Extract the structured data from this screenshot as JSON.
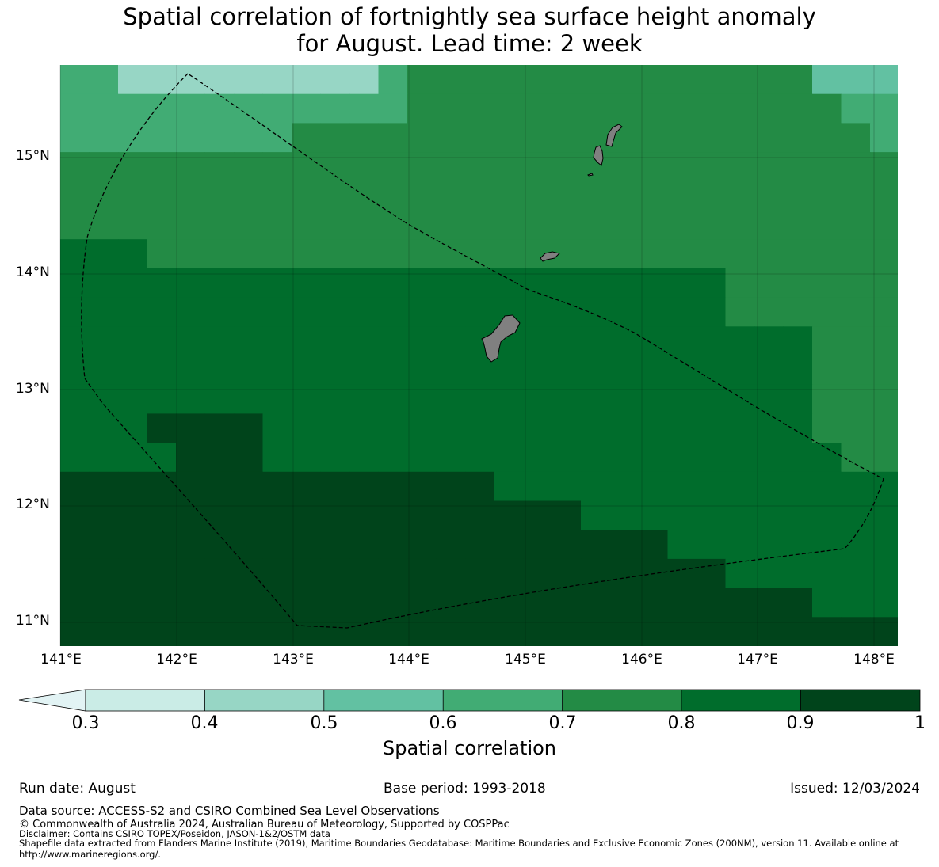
{
  "title": {
    "line1": "Spatial correlation of fortnightly sea surface height anomaly",
    "line2": "for August. Lead time: 2 week"
  },
  "map": {
    "lat_labels": [
      "15°N",
      "14°N",
      "13°N",
      "12°N",
      "11°N"
    ],
    "lon_labels": [
      "141°E",
      "142°E",
      "143°E",
      "144°E",
      "145°E",
      "146°E",
      "147°E",
      "148°E"
    ],
    "lon_range": [
      141.0,
      148.2
    ],
    "lat_range": [
      10.8,
      15.8
    ],
    "land_color": "#808080",
    "boundary_style": "dashed black"
  },
  "colorbar": {
    "label": "Spatial correlation",
    "ticks": [
      "0.3",
      "0.4",
      "0.5",
      "0.6",
      "0.7",
      "0.8",
      "0.9",
      "1"
    ],
    "extend": "min",
    "bin_colors": [
      "#e2f3f4",
      "#caece6",
      "#97d6c5",
      "#62c1a2",
      "#41ac74",
      "#238b45",
      "#006d2c",
      "#00441b"
    ]
  },
  "footer": {
    "run_date": "Run date: August",
    "base_period": "Base period: 1993-2018",
    "issued": "Issued: 12/03/2024",
    "data_source": "Data source: ACCESS-S2 and CSIRO Combined Sea Level Observations",
    "copyright": "© Commonwealth of Australia 2024, Australian Bureau of Meteorology, Supported by COSPPac",
    "disclaimer": "Disclaimer: Contains CSIRO TOPEX/Poseidon, JASON-1&2/OSTM data",
    "shapefile": "Shapefile data extracted from Flanders Marine Institute (2019), Maritime Boundaries Geodatabase: Maritime Boundaries and Exclusive Economic Zones (200NM), version 11. Available online at http://www.marineregions.org/."
  }
}
